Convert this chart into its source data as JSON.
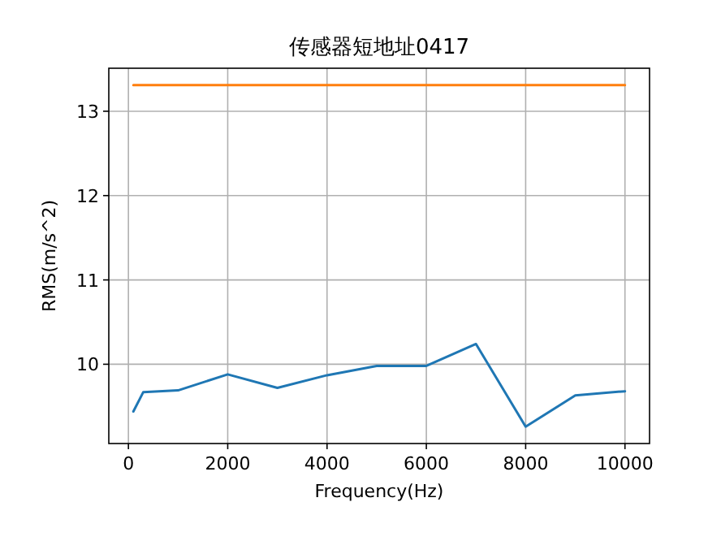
{
  "chart_data": {
    "type": "line",
    "title": "传感器短地址0417",
    "xlabel": "Frequency(Hz)",
    "ylabel": "RMS(m/s^2)",
    "series": [
      {
        "color": "#1f77b4",
        "x": [
          100,
          300,
          1000,
          2000,
          3000,
          4000,
          5000,
          6000,
          7000,
          8000,
          9000,
          10000
        ],
        "values": [
          9.44,
          9.67,
          9.69,
          9.88,
          9.72,
          9.87,
          9.98,
          9.98,
          10.24,
          9.26,
          9.63,
          9.68
        ]
      },
      {
        "color": "#ff7f0e",
        "x": [
          100,
          10000
        ],
        "values": [
          13.31,
          13.31
        ]
      }
    ],
    "xlim": [
      -395,
      10495
    ],
    "ylim": [
      9.06,
      13.51
    ],
    "xticks": [
      0,
      2000,
      4000,
      6000,
      8000,
      10000
    ],
    "yticks": [
      10,
      11,
      12,
      13
    ],
    "grid": true
  }
}
